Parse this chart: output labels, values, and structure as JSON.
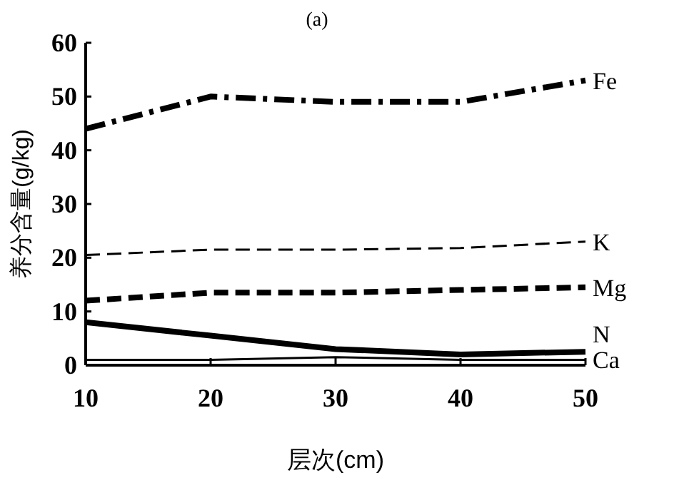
{
  "chart_data": {
    "type": "line",
    "title": "(a)",
    "xlabel": "层次(cm)",
    "ylabel": "养分含量(g/kg)",
    "x": [
      10,
      20,
      30,
      40,
      50
    ],
    "xlim": [
      10,
      50
    ],
    "xticks": [
      10,
      20,
      30,
      40,
      50
    ],
    "ylim": [
      0,
      60
    ],
    "yticks": [
      0,
      10,
      20,
      30,
      40,
      50,
      60
    ],
    "grid": false,
    "legend": false,
    "marker": "none",
    "series": [
      {
        "name": "Fe",
        "color": "#000000",
        "line_style": "dashdot",
        "values": [
          44,
          50,
          49,
          49,
          53
        ]
      },
      {
        "name": "K",
        "color": "#000000",
        "line_style": "dashed",
        "values": [
          20.5,
          21.5,
          21.5,
          21.8,
          23
        ]
      },
      {
        "name": "Mg",
        "color": "#000000",
        "line_style": "dashed",
        "values": [
          12,
          13.5,
          13.5,
          14,
          14.5
        ]
      },
      {
        "name": "N",
        "color": "#000000",
        "line_style": "solid",
        "values": [
          8,
          5.5,
          3,
          2,
          2.5
        ]
      },
      {
        "name": "Ca",
        "color": "#000000",
        "line_style": "solid",
        "values": [
          1,
          1,
          1.5,
          1,
          1
        ]
      }
    ]
  }
}
